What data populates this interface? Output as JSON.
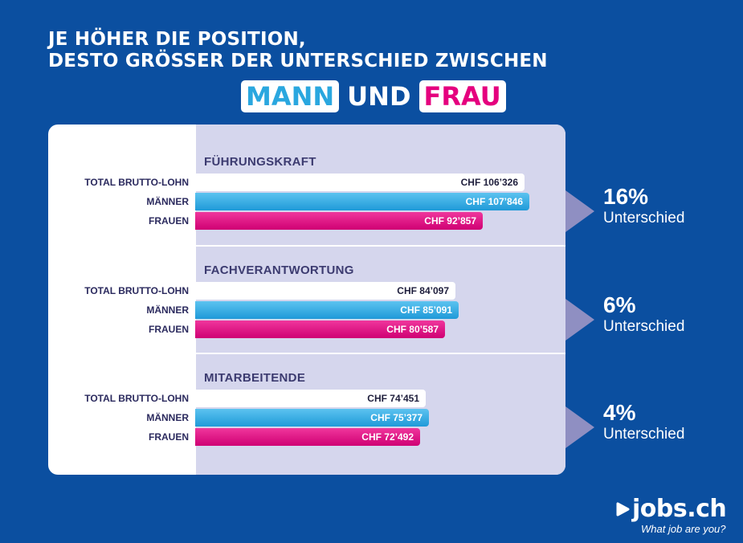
{
  "header": {
    "line1": "JE HÖHER DIE POSITION,",
    "line2": "DESTO GRÖSSER DER UNTERSCHIED ZWISCHEN",
    "word_mann": "MANN",
    "word_und": "UND",
    "word_frau": "FRAU"
  },
  "colors": {
    "background": "#0b4fa0",
    "men": "#2aa7df",
    "women": "#e5007e",
    "total": "#ffffff",
    "arrow": "#8f8fc2"
  },
  "row_labels": {
    "total": "TOTAL BRUTTO-LOHN",
    "men": "MÄNNER",
    "women": "FRAUEN"
  },
  "chart_data": {
    "type": "bar",
    "orientation": "horizontal",
    "currency": "CHF",
    "groups": [
      {
        "name": "FÜHRUNGSKRAFT",
        "total": 106326,
        "men": 107846,
        "women": 92857,
        "total_label": "CHF 106’326",
        "men_label": "CHF 107’846",
        "women_label": "CHF 92’857",
        "difference_pct": "16%",
        "difference_label": "Unterschied"
      },
      {
        "name": "FACHVERANTWORTUNG",
        "total": 84097,
        "men": 85091,
        "women": 80587,
        "total_label": "CHF 84’097",
        "men_label": "CHF 85’091",
        "women_label": "CHF 80’587",
        "difference_pct": "6%",
        "difference_label": "Unterschied"
      },
      {
        "name": "MITARBEITENDE",
        "total": 74451,
        "men": 75377,
        "women": 72492,
        "total_label": "CHF 74’451",
        "men_label": "CHF 75’377",
        "women_label": "CHF 72’492",
        "difference_pct": "4%",
        "difference_label": "Unterschied"
      }
    ]
  },
  "logo": {
    "brand": "jobs.ch",
    "tagline": "What job are you?",
    "icon": "play-arrow-icon"
  }
}
